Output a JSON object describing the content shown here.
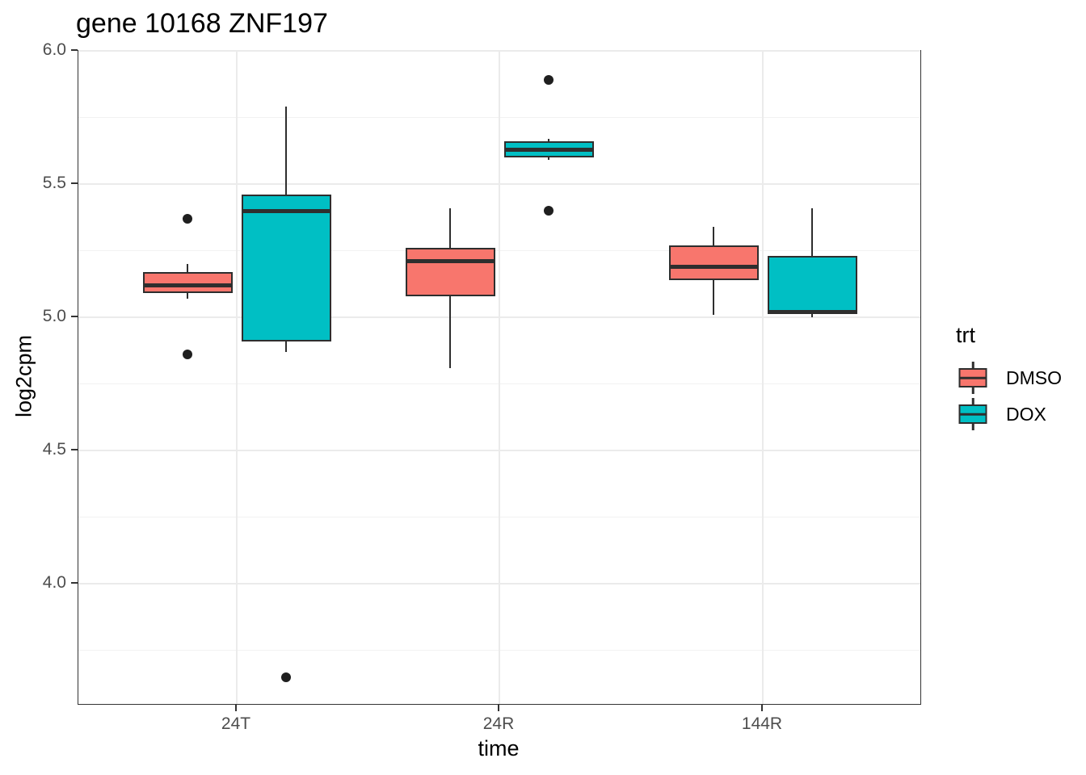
{
  "chart_data": {
    "type": "boxplot",
    "title": "gene 10168 ZNF197",
    "xlabel": "time",
    "ylabel": "log2cpm",
    "categories": [
      "24T",
      "24R",
      "144R"
    ],
    "y_axis": {
      "ticks": [
        6.0,
        5.5,
        5.0,
        4.5,
        4.0
      ],
      "tick_labels": [
        "6.0",
        "5.5",
        "5.0",
        "4.5",
        "4.0"
      ],
      "minor_ticks": [
        5.75,
        5.25,
        4.75,
        4.25,
        3.75
      ],
      "range": [
        3.55,
        6.01
      ]
    },
    "grid": true,
    "legend": {
      "title": "trt",
      "position": "right",
      "entries": [
        {
          "label": "DMSO",
          "color": "#F8766D"
        },
        {
          "label": "DOX",
          "color": "#00BFC4"
        }
      ]
    },
    "series": [
      {
        "name": "DMSO",
        "color": "#F8766D",
        "boxes": [
          {
            "category": "24T",
            "whisker_low": 5.07,
            "q1": 5.09,
            "median": 5.12,
            "q3": 5.17,
            "whisker_high": 5.2,
            "outliers": [
              5.37,
              4.86
            ]
          },
          {
            "category": "24R",
            "whisker_low": 4.81,
            "q1": 5.08,
            "median": 5.21,
            "q3": 5.26,
            "whisker_high": 5.41,
            "outliers": []
          },
          {
            "category": "144R",
            "whisker_low": 5.01,
            "q1": 5.14,
            "median": 5.19,
            "q3": 5.27,
            "whisker_high": 5.34,
            "outliers": []
          }
        ]
      },
      {
        "name": "DOX",
        "color": "#00BFC4",
        "boxes": [
          {
            "category": "24T",
            "whisker_low": 4.87,
            "q1": 4.91,
            "median": 5.4,
            "q3": 5.46,
            "whisker_high": 5.79,
            "outliers": [
              3.65
            ]
          },
          {
            "category": "24R",
            "whisker_low": 5.59,
            "q1": 5.6,
            "median": 5.63,
            "q3": 5.66,
            "whisker_high": 5.67,
            "outliers": [
              5.89,
              5.4
            ]
          },
          {
            "category": "144R",
            "whisker_low": 5.0,
            "q1": 5.02,
            "median": 5.02,
            "q3": 5.23,
            "whisker_high": 5.41,
            "outliers": []
          }
        ]
      }
    ],
    "style": {
      "background": "#FFFFFF",
      "panel_border": "#333333",
      "box_border": "#2e2e2e",
      "grid_major": "#EBEBEB",
      "grid_minor": "#F2F2F2",
      "tick_label_color": "#4D4D4D",
      "outlier_color": "#1f1f1f"
    }
  }
}
